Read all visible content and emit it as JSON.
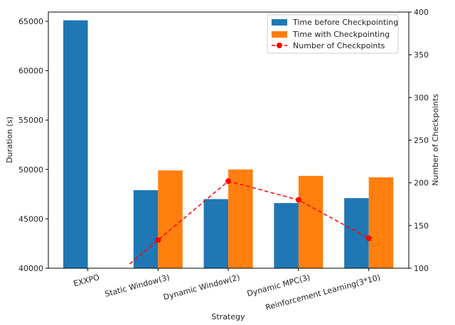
{
  "chart_data": {
    "type": "bar",
    "categories": [
      "EXXPO",
      "Static Window(3)",
      "Dynamic Window(2)",
      "Dynamic MPC(3)",
      "Reinforcement Learning(3*10)"
    ],
    "series": [
      {
        "name": "Time before Checkpointing",
        "values": [
          65100,
          47900,
          47000,
          46600,
          47100
        ],
        "color": "#1f77b4",
        "axis": "left"
      },
      {
        "name": "Time with Checkpointing",
        "values": [
          null,
          49900,
          50000,
          49350,
          49200
        ],
        "color": "#ff7f0e",
        "axis": "left"
      },
      {
        "name": "Number of Checkpoints",
        "values": [
          null,
          133,
          202,
          180,
          135
        ],
        "color": "#ff0000",
        "axis": "right",
        "style": "dashed-line-with-dots"
      }
    ],
    "xlabel": "Strategy",
    "ylabel": "Duration (s)",
    "y2label": "Number of Checkpoints",
    "ylim": [
      40000,
      66000
    ],
    "y2lim": [
      100,
      400
    ],
    "yticks": [
      40000,
      45000,
      50000,
      55000,
      60000,
      65000
    ],
    "y2ticks": [
      100,
      150,
      200,
      250,
      300,
      350,
      400
    ],
    "legend_position": "top-right",
    "grid": false
  }
}
